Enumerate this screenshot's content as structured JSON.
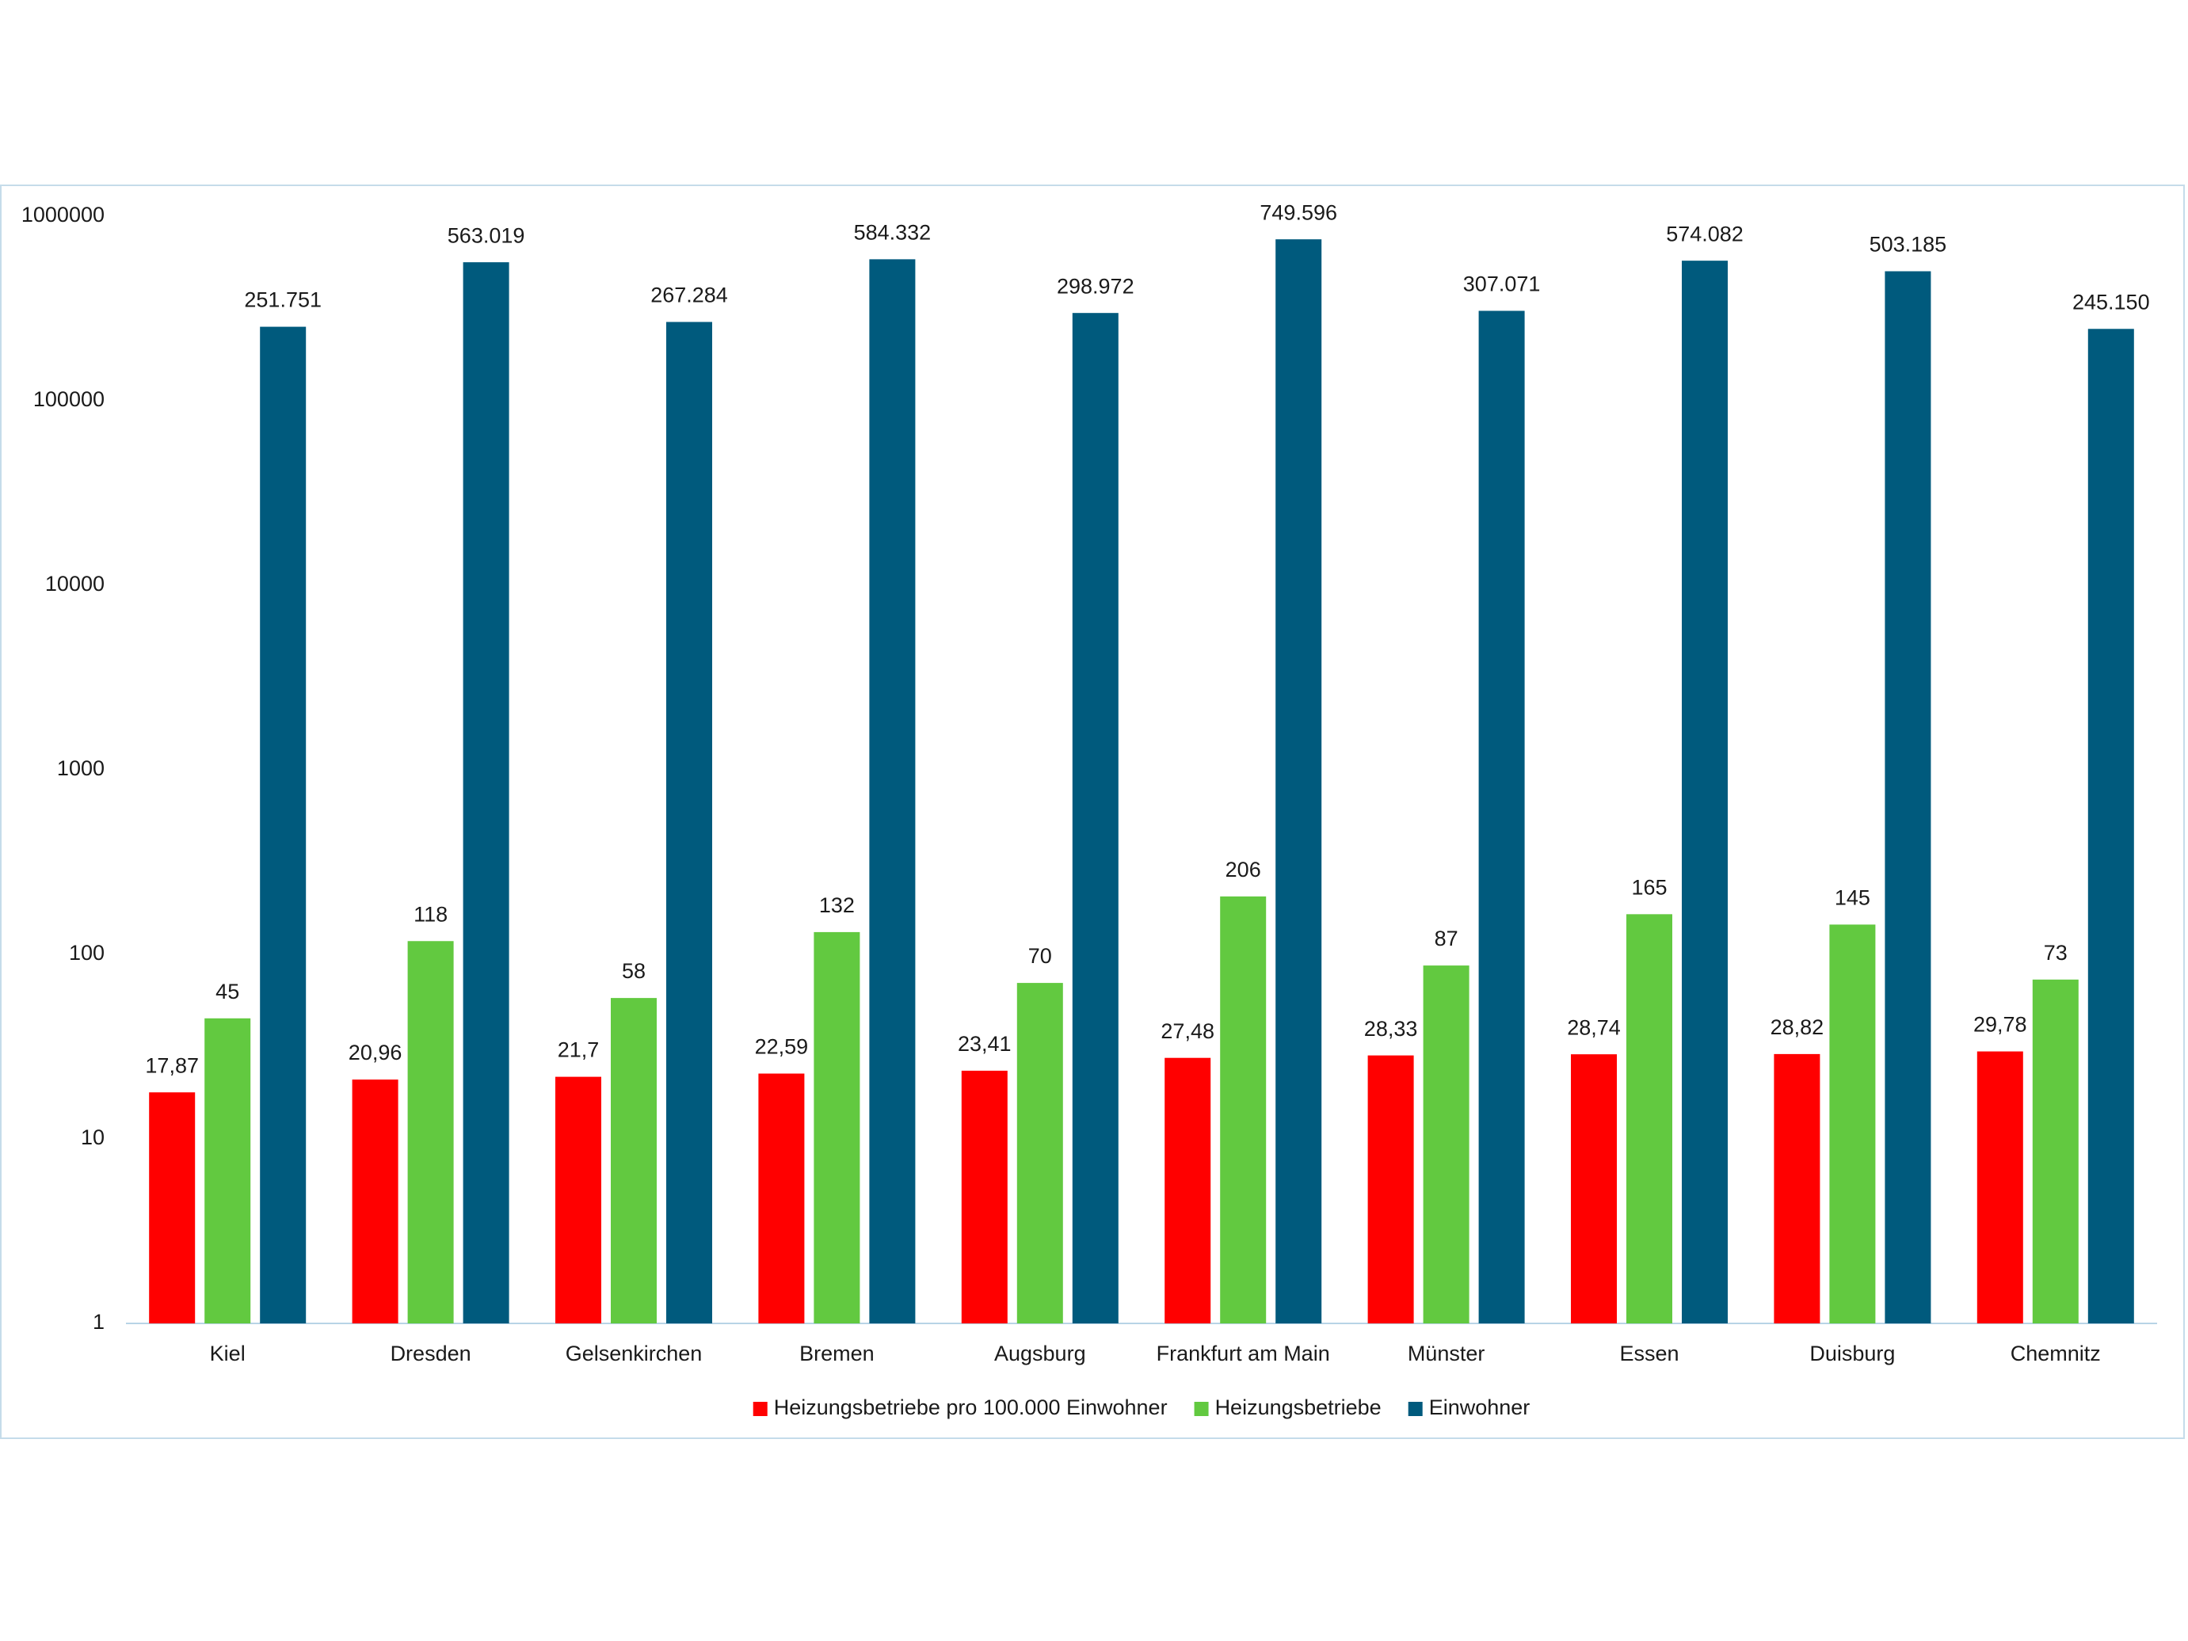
{
  "chart_data": {
    "type": "bar",
    "yscale": "log",
    "grid": false,
    "legend": "bottom",
    "categories": [
      "Kiel",
      "Dresden",
      "Gelsenkirchen",
      "Bremen",
      "Augsburg",
      "Frankfurt am Main",
      "Münster",
      "Essen",
      "Duisburg",
      "Chemnitz"
    ],
    "ylim": [
      1,
      1000000
    ],
    "yticks": [
      1,
      10,
      100,
      1000,
      10000,
      100000,
      1000000
    ],
    "series": [
      {
        "name": "Heizungsbetriebe pro 100.000 Einwohner",
        "color": "#ff0000",
        "values": [
          17.87,
          20.96,
          21.7,
          22.59,
          23.41,
          27.48,
          28.33,
          28.74,
          28.82,
          29.78
        ],
        "value_labels": [
          "17,87",
          "20,96",
          "21,7",
          "22,59",
          "23,41",
          "27,48",
          "28,33",
          "28,74",
          "28,82",
          "29,78"
        ]
      },
      {
        "name": "Heizungsbetriebe",
        "color": "#62c940",
        "values": [
          45,
          118,
          58,
          132,
          70,
          206,
          87,
          165,
          145,
          73
        ]
      },
      {
        "name": "Einwohner",
        "color": "#005a7d",
        "values": [
          251751,
          563019,
          267284,
          584332,
          298972,
          749596,
          307071,
          574082,
          503185,
          245150
        ],
        "value_labels": [
          "251.751",
          "563.019",
          "267.284",
          "584.332",
          "298.972",
          "749.596",
          "307.071",
          "574.082",
          "503.185",
          "245.150"
        ]
      }
    ]
  }
}
